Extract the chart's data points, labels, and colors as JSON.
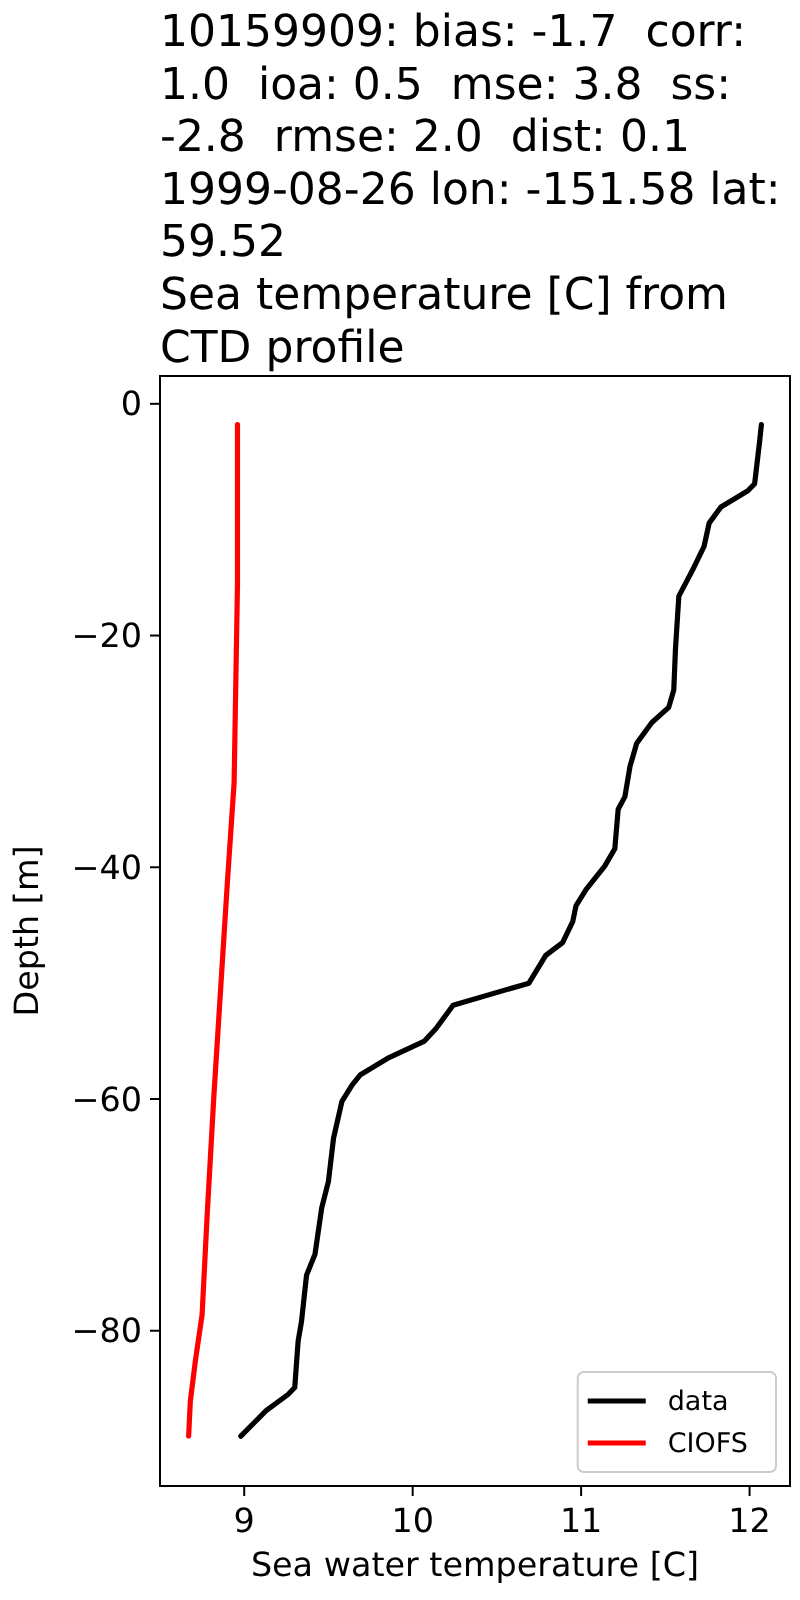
{
  "chart_data": {
    "type": "line",
    "title": "10159909: bias: -1.7  corr: 1.0  ioa: 0.5  mse: 3.8  ss: -2.8  rmse: 2.0  dist: 0.1\n1999-08-26 lon: -151.58 lat: 59.52\nSea temperature [C] from CTD profile",
    "xlabel": "Sea water temperature [C]",
    "ylabel": "Depth [m]",
    "xlim": [
      8.5,
      12.24
    ],
    "ylim": [
      -93.4,
      2.4
    ],
    "xticks": [
      9,
      10,
      11,
      12
    ],
    "yticks": [
      0,
      {
        "value": -20,
        "label": "−20"
      },
      {
        "value": -40,
        "label": "−40"
      },
      {
        "value": -60,
        "label": "−60"
      },
      {
        "value": -80,
        "label": "−80"
      }
    ],
    "series": [
      {
        "name": "data",
        "color": "#000000",
        "x": [
          12.07,
          12.06,
          12.03,
          11.99,
          11.83,
          11.76,
          11.73,
          11.67,
          11.62,
          11.58,
          11.56,
          11.55,
          11.52,
          11.42,
          11.33,
          11.29,
          11.26,
          11.22,
          11.2,
          11.14,
          11.03,
          10.97,
          10.95,
          10.89,
          10.79,
          10.69,
          10.24,
          10.14,
          10.07,
          9.85,
          9.69,
          9.64,
          9.58,
          9.53,
          9.5,
          9.46,
          9.42,
          9.37,
          9.34,
          9.32,
          9.3,
          9.26,
          9.13,
          8.98
        ],
        "values": [
          -1.8,
          -3.2,
          -6.9,
          -7.5,
          -8.9,
          -10.3,
          -12.3,
          -14.1,
          -15.5,
          -16.6,
          -21.2,
          -24.7,
          -26.2,
          -27.5,
          -29.3,
          -31.3,
          -33.9,
          -35.0,
          -38.4,
          -39.9,
          -41.9,
          -43.3,
          -44.7,
          -46.5,
          -47.6,
          -50.0,
          -51.9,
          -53.9,
          -55.0,
          -56.5,
          -57.9,
          -58.8,
          -60.2,
          -63.4,
          -67.1,
          -69.4,
          -73.4,
          -75.2,
          -79.2,
          -80.9,
          -84.9,
          -85.5,
          -86.9,
          -89.1
        ]
      },
      {
        "name": "CIOFS",
        "color": "#ff0000",
        "x": [
          8.96,
          8.96,
          8.94,
          8.9,
          8.87,
          8.82,
          8.78,
          8.75,
          8.71,
          8.68,
          8.67
        ],
        "values": [
          -1.8,
          -15.5,
          -32.7,
          -41.3,
          -48.2,
          -59.7,
          -70.0,
          -78.6,
          -82.6,
          -86.1,
          -89.1
        ]
      }
    ],
    "legend": "bottom right"
  }
}
